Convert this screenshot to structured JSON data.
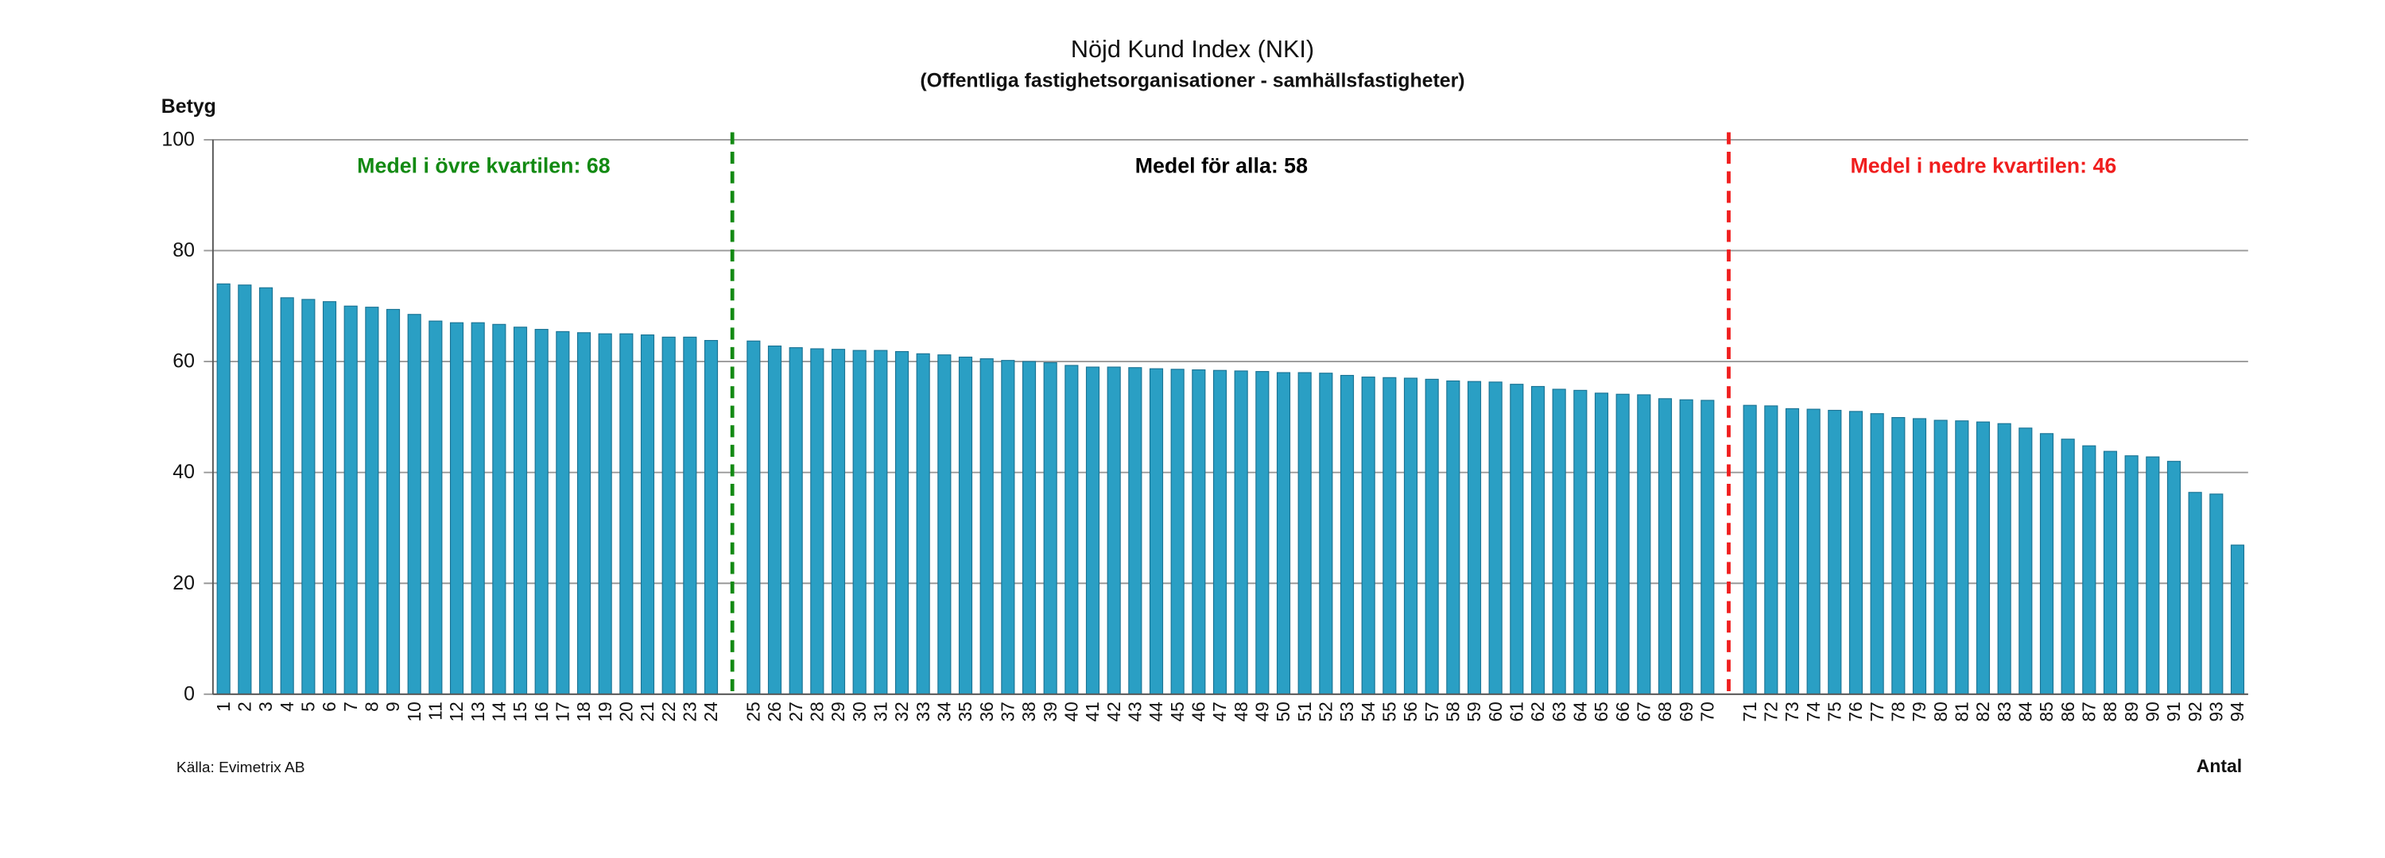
{
  "chart_data": {
    "type": "bar",
    "title": "Nöjd Kund Index (NKI)",
    "subtitle": "(Offentliga fastighetsorganisationer - samhällsfastigheter)",
    "y_label": "Betyg",
    "x_label": "Antal",
    "source": "Källa: Evimetrix AB",
    "annotations": [
      {
        "text": "Medel i övre kvartilen: 68",
        "color": "#138a13"
      },
      {
        "text": "Medel för alla: 58",
        "color": "#000000"
      },
      {
        "text": "Medel i nedre kvartilen: 46",
        "color": "#f01e1e"
      }
    ],
    "categories": [
      1,
      2,
      3,
      4,
      5,
      6,
      7,
      8,
      9,
      10,
      11,
      12,
      13,
      14,
      15,
      16,
      17,
      18,
      19,
      20,
      21,
      22,
      23,
      24,
      25,
      26,
      27,
      28,
      29,
      30,
      31,
      32,
      33,
      34,
      35,
      36,
      37,
      38,
      39,
      40,
      41,
      42,
      43,
      44,
      45,
      46,
      47,
      48,
      49,
      50,
      51,
      52,
      53,
      54,
      55,
      56,
      57,
      58,
      59,
      60,
      61,
      62,
      63,
      64,
      65,
      66,
      67,
      68,
      69,
      70,
      71,
      72,
      73,
      74,
      75,
      76,
      77,
      78,
      79,
      80,
      81,
      82,
      83,
      84,
      85,
      86,
      87,
      88,
      89,
      90,
      91,
      92,
      93,
      94
    ],
    "values": [
      74,
      73.8,
      73.3,
      71.5,
      71.2,
      70.8,
      70,
      69.8,
      69.4,
      68.5,
      67.3,
      67,
      67,
      66.7,
      66.2,
      65.8,
      65.4,
      65.2,
      65,
      65,
      64.8,
      64.4,
      64.4,
      63.8,
      63.7,
      62.8,
      62.5,
      62.3,
      62.2,
      62,
      62,
      61.8,
      61.4,
      61.2,
      60.8,
      60.5,
      60.2,
      60,
      59.8,
      59.3,
      59,
      59,
      58.9,
      58.7,
      58.6,
      58.5,
      58.4,
      58.3,
      58.2,
      58,
      58,
      57.9,
      57.5,
      57.2,
      57.1,
      57,
      56.8,
      56.5,
      56.4,
      56.3,
      55.9,
      55.5,
      55,
      54.8,
      54.3,
      54.1,
      54,
      53.3,
      53.1,
      53,
      52.1,
      52,
      51.5,
      51.4,
      51.2,
      51,
      50.6,
      49.9,
      49.7,
      49.4,
      49.3,
      49.1,
      48.8,
      48,
      47,
      46,
      44.8,
      43.8,
      43,
      42.8,
      42,
      36.4,
      36.1,
      26.9
    ],
    "color": "#2a9fc4",
    "ylim": [
      0,
      100
    ],
    "yticks": [
      0,
      20,
      40,
      60,
      80,
      100
    ],
    "grid": true
  }
}
